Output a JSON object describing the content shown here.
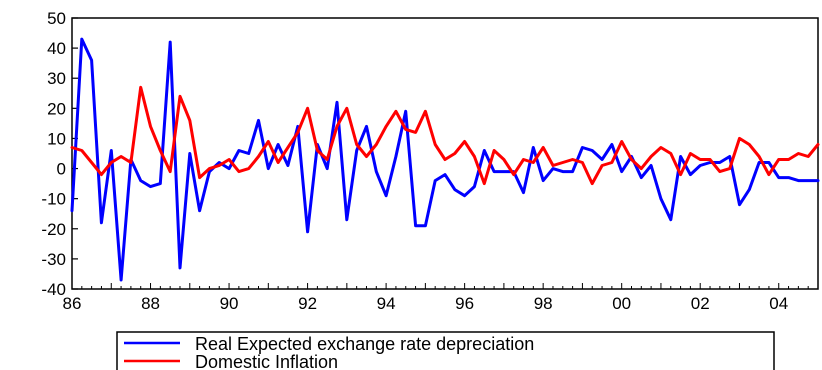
{
  "chart_data": {
    "type": "line",
    "title": "",
    "xlabel": "",
    "ylabel": "",
    "ylim": [
      -40,
      50
    ],
    "yticks": [
      -40,
      -30,
      -20,
      -10,
      0,
      10,
      20,
      30,
      40,
      50
    ],
    "xlim": [
      1986.0,
      2005.0
    ],
    "xtick_labels": [
      {
        "x": 1986,
        "label": "86"
      },
      {
        "x": 1988,
        "label": "88"
      },
      {
        "x": 1990,
        "label": "90"
      },
      {
        "x": 1992,
        "label": "92"
      },
      {
        "x": 1994,
        "label": "94"
      },
      {
        "x": 1996,
        "label": "96"
      },
      {
        "x": 1998,
        "label": "98"
      },
      {
        "x": 2000,
        "label": "00"
      },
      {
        "x": 2002,
        "label": "02"
      },
      {
        "x": 2004,
        "label": "04"
      }
    ],
    "grid": false,
    "legend_position": "bottom",
    "series": [
      {
        "name": "Real Expected exchange rate depreciation",
        "color": "#0000ff",
        "x": [
          1986.0,
          1986.25,
          1986.5,
          1986.75,
          1987.0,
          1987.25,
          1987.5,
          1987.75,
          1988.0,
          1988.25,
          1988.5,
          1988.75,
          1989.0,
          1989.25,
          1989.5,
          1989.75,
          1990.0,
          1990.25,
          1990.5,
          1990.75,
          1991.0,
          1991.25,
          1991.5,
          1991.75,
          1992.0,
          1992.25,
          1992.5,
          1992.75,
          1993.0,
          1993.25,
          1993.5,
          1993.75,
          1994.0,
          1994.25,
          1994.5,
          1994.75,
          1995.0,
          1995.25,
          1995.5,
          1995.75,
          1996.0,
          1996.25,
          1996.5,
          1996.75,
          1997.0,
          1997.25,
          1997.5,
          1997.75,
          1998.0,
          1998.25,
          1998.5,
          1998.75,
          1999.0,
          1999.25,
          1999.5,
          1999.75,
          2000.0,
          2000.25,
          2000.5,
          2000.75,
          2001.0,
          2001.25,
          2001.5,
          2001.75,
          2002.0,
          2002.25,
          2002.5,
          2002.75,
          2003.0,
          2003.25,
          2003.5,
          2003.75,
          2004.0,
          2004.25,
          2004.5,
          2004.75,
          2005.0
        ],
        "values": [
          -14,
          43,
          36,
          -18,
          6,
          -37,
          3,
          -4,
          -6,
          -5,
          42,
          -33,
          5,
          -14,
          -1,
          2,
          0,
          6,
          5,
          16,
          0,
          8,
          1,
          14,
          -21,
          8,
          0,
          22,
          -17,
          6,
          14,
          -1,
          -9,
          4,
          19,
          -19,
          -19,
          -4,
          -2,
          -7,
          -9,
          -6,
          6,
          -1,
          -1,
          -1,
          -8,
          7,
          -4,
          0,
          -1,
          -1,
          7,
          6,
          3,
          8,
          -1,
          4,
          -3,
          1,
          -10,
          -17,
          4,
          -2,
          1,
          2,
          2,
          4,
          -12,
          -7,
          2,
          2,
          -3,
          -3,
          -4,
          -4,
          -4
        ]
      },
      {
        "name": "Domestic Inflation",
        "color": "#ff0000",
        "x": [
          1986.0,
          1986.25,
          1986.5,
          1986.75,
          1987.0,
          1987.25,
          1987.5,
          1987.75,
          1988.0,
          1988.25,
          1988.5,
          1988.75,
          1989.0,
          1989.25,
          1989.5,
          1989.75,
          1990.0,
          1990.25,
          1990.5,
          1990.75,
          1991.0,
          1991.25,
          1991.5,
          1991.75,
          1992.0,
          1992.25,
          1992.5,
          1992.75,
          1993.0,
          1993.25,
          1993.5,
          1993.75,
          1994.0,
          1994.25,
          1994.5,
          1994.75,
          1995.0,
          1995.25,
          1995.5,
          1995.75,
          1996.0,
          1996.25,
          1996.5,
          1996.75,
          1997.0,
          1997.25,
          1997.5,
          1997.75,
          1998.0,
          1998.25,
          1998.5,
          1998.75,
          1999.0,
          1999.25,
          1999.5,
          1999.75,
          2000.0,
          2000.25,
          2000.5,
          2000.75,
          2001.0,
          2001.25,
          2001.5,
          2001.75,
          2002.0,
          2002.25,
          2002.5,
          2002.75,
          2003.0,
          2003.25,
          2003.5,
          2003.75,
          2004.0,
          2004.25,
          2004.5,
          2004.75,
          2005.0
        ],
        "values": [
          7,
          6,
          2,
          -2,
          2,
          4,
          2,
          27,
          14,
          6,
          -1,
          24,
          16,
          -3,
          0,
          1,
          3,
          -1,
          0,
          4,
          9,
          2,
          7,
          12,
          20,
          6,
          3,
          14,
          20,
          8,
          4,
          8,
          14,
          19,
          13,
          12,
          19,
          8,
          3,
          5,
          9,
          4,
          -5,
          6,
          3,
          -2,
          3,
          2,
          7,
          1,
          2,
          3,
          2,
          -5,
          1,
          2,
          9,
          3,
          0,
          4,
          7,
          5,
          -2,
          5,
          3,
          3,
          -1,
          0,
          10,
          8,
          4,
          -2,
          3,
          3,
          5,
          4,
          8
        ]
      }
    ]
  }
}
